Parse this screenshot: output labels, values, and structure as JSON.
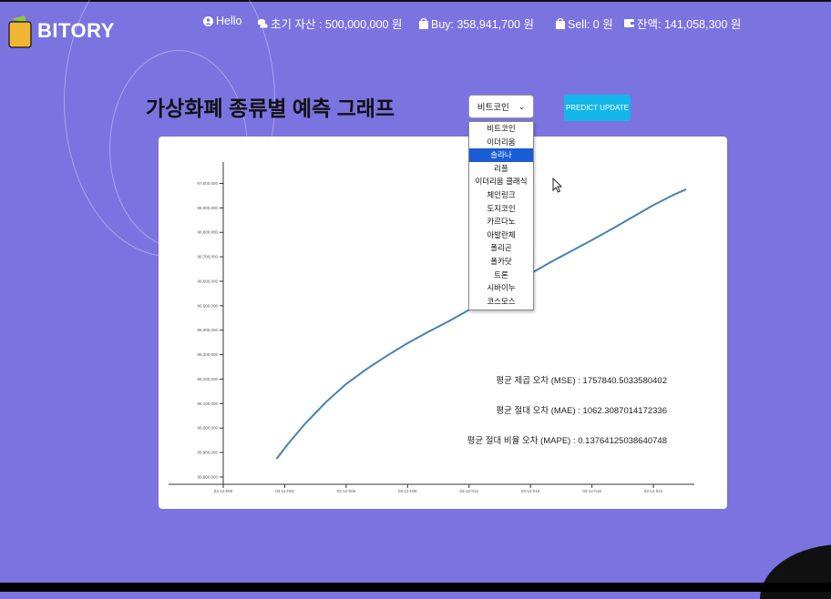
{
  "header": {
    "logo_text": "BITORY",
    "greeting": "Hello",
    "initial_assets": "초기 자산 : 500,000,000 원",
    "buy": "Buy: 358,941,700 원",
    "sell": "Sell: 0 원",
    "balance": "잔액: 141,058,300 원",
    "icons": [
      "user-icon",
      "coins-icon",
      "bag-icon",
      "bag-icon",
      "wallet-icon"
    ]
  },
  "main": {
    "title": "가상화폐 종류별 예측 그래프",
    "select_value": "비트코인",
    "predict_button": "PREDICT UPDATE"
  },
  "dropdown": {
    "options": [
      "비트코인",
      "이더리움",
      "솔라나",
      "리플",
      "이더리움 클래식",
      "체인링크",
      "도지코인",
      "카르다노",
      "아발란체",
      "폴리곤",
      "폴카닷",
      "트론",
      "시바이누",
      "코스모스"
    ],
    "highlighted_index": 2
  },
  "metrics": {
    "mse": "평균 제곱 오차 (MSE) : 1757840.5033580402",
    "mae": "평균 절대 오차 (MAE) : 1062.3087014172336",
    "mape": "평균 절대 비율 오차 (MAPE) : 0.13764125038640748"
  },
  "colors": {
    "background": "#7b73e0",
    "line": "#4682b4",
    "button": "#13b6e9",
    "highlight": "#1a5bd6"
  },
  "chart_data": {
    "type": "line",
    "y_ticks": [
      "95,800,000",
      "95,900,000",
      "96,000,000",
      "96,100,000",
      "96,200,000",
      "96,300,000",
      "96,400,000",
      "96,500,000",
      "96,600,000",
      "96,700,000",
      "96,800,000",
      "96,900,000",
      "97,000,000"
    ],
    "x_ticks": [
      "03-12-h00",
      "03-12-h03",
      "03-12-h06",
      "03-12-h09",
      "03-12-h12",
      "03-12-h15",
      "03-12-h18",
      "03-12-h21"
    ],
    "ylim": [
      95770000,
      97080000
    ],
    "xlim": [
      0,
      23
    ],
    "series": [
      {
        "x": [
          2.6,
          3.2,
          4.0,
          5.0,
          6.0,
          7.0,
          8.0,
          9.0,
          10.0,
          11.0,
          12.0,
          13.0,
          14.0,
          15.0,
          16.0,
          17.0,
          18.0,
          19.0,
          20.0,
          21.0,
          22.0,
          22.6
        ],
        "y": [
          95874000,
          95939000,
          96018000,
          96105000,
          96180000,
          96241000,
          96296000,
          96347000,
          96393000,
          96436000,
          96483000,
          96531000,
          96581000,
          96631000,
          96679000,
          96724000,
          96768000,
          96815000,
          96863000,
          96911000,
          96954000,
          96976000
        ]
      }
    ]
  }
}
